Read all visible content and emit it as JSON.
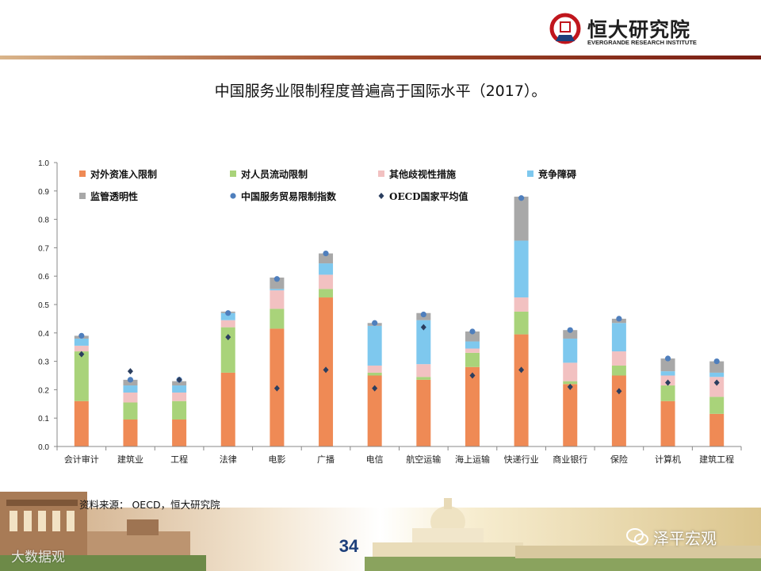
{
  "header": {
    "logo_name": "恒大研究院",
    "logo_subtitle": "EVERGRANDE RESEARCH INSTITUTE"
  },
  "slide": {
    "title": "中国服务业限制程度普遍高于国际水平（2017）。",
    "source": "资料来源： OECD，恒大研究院",
    "page_number": "34"
  },
  "watermarks": {
    "wechat_account": "泽平宏观",
    "corner_text": "大数据观"
  },
  "colors": {
    "brand_red": "#c0161d",
    "page_number": "#1d3f7a"
  },
  "chart_data": {
    "type": "bar",
    "stacked": true,
    "categories": [
      "会计审计",
      "建筑业",
      "工程",
      "法律",
      "电影",
      "广播",
      "电信",
      "航空运输",
      "海上运输",
      "快递行业",
      "商业银行",
      "保险",
      "计算机",
      "建筑工程"
    ],
    "series": [
      {
        "name": "对外资准入限制",
        "color": "#ef8a55",
        "values": [
          0.16,
          0.095,
          0.095,
          0.26,
          0.415,
          0.525,
          0.25,
          0.235,
          0.28,
          0.395,
          0.22,
          0.25,
          0.16,
          0.115
        ]
      },
      {
        "name": "对人员流动限制",
        "color": "#a9d37a",
        "values": [
          0.175,
          0.06,
          0.065,
          0.16,
          0.07,
          0.03,
          0.01,
          0.01,
          0.05,
          0.08,
          0.01,
          0.035,
          0.055,
          0.06
        ]
      },
      {
        "name": "其他歧视性措施",
        "color": "#f2c1c1",
        "values": [
          0.02,
          0.035,
          0.03,
          0.025,
          0.065,
          0.05,
          0.025,
          0.045,
          0.015,
          0.05,
          0.065,
          0.05,
          0.035,
          0.07
        ]
      },
      {
        "name": "竞争障碍",
        "color": "#7ec8ee",
        "values": [
          0.025,
          0.025,
          0.025,
          0.025,
          0.005,
          0.04,
          0.14,
          0.155,
          0.025,
          0.2,
          0.085,
          0.1,
          0.015,
          0.015
        ]
      },
      {
        "name": "监管透明性",
        "color": "#a8a8a8",
        "values": [
          0.01,
          0.02,
          0.015,
          0.005,
          0.04,
          0.035,
          0.01,
          0.025,
          0.035,
          0.155,
          0.03,
          0.015,
          0.045,
          0.04
        ]
      }
    ],
    "markers": [
      {
        "name": "中国服务贸易限制指数",
        "shape": "circle",
        "color": "#4f7fbd",
        "values": [
          0.39,
          0.235,
          0.235,
          0.47,
          0.59,
          0.68,
          0.435,
          0.465,
          0.405,
          0.875,
          0.41,
          0.45,
          0.31,
          0.3
        ]
      },
      {
        "name": "OECD国家平均值",
        "shape": "diamond",
        "color": "#2b3e5f",
        "values": [
          0.325,
          0.265,
          0.235,
          0.385,
          0.205,
          0.27,
          0.205,
          0.42,
          0.25,
          0.27,
          0.21,
          0.195,
          0.225,
          0.225
        ]
      }
    ],
    "ylim": [
      0,
      1.0
    ],
    "yticks": [
      "0.0",
      "0.1",
      "0.2",
      "0.3",
      "0.4",
      "0.5",
      "0.6",
      "0.7",
      "0.8",
      "0.9",
      "1.0"
    ],
    "grid": false,
    "legend_position": "top-left inside",
    "xlabel": "",
    "ylabel": ""
  }
}
